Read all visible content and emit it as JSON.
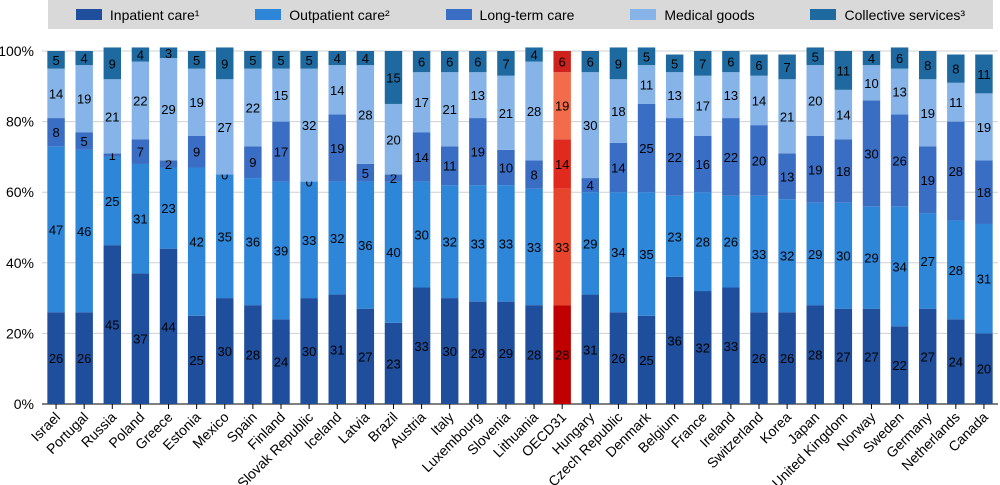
{
  "legend": [
    {
      "label": "Inpatient care¹",
      "color": "#1f4e9c"
    },
    {
      "label": "Outpatient care²",
      "color": "#2e86d9"
    },
    {
      "label": "Long-term care",
      "color": "#3a6ec4"
    },
    {
      "label": "Medical goods",
      "color": "#86b4e8"
    },
    {
      "label": "Collective services³",
      "color": "#1e6aa0"
    }
  ],
  "chart_data": {
    "type": "bar",
    "stacked": true,
    "title": "",
    "xlabel": "",
    "ylabel": "",
    "ylim": [
      0,
      100
    ],
    "y_ticks": [
      "0%",
      "20%",
      "40%",
      "60%",
      "80%",
      "100%"
    ],
    "categories": [
      "Israel",
      "Portugal",
      "Russia",
      "Poland",
      "Greece",
      "Estonia",
      "Mexico",
      "Spain",
      "Finland",
      "Slovak Republic",
      "Iceland",
      "Latvia",
      "Brazil",
      "Austria",
      "Italy",
      "Luxembourg",
      "Slovenia",
      "Lithuania",
      "OECD31",
      "Hungary",
      "Czech Republic",
      "Denmark",
      "Belgium",
      "France",
      "Ireland",
      "Switzerland",
      "Korea",
      "Japan",
      "United Kingdom",
      "Norway",
      "Sweden",
      "Germany",
      "Netherlands",
      "Canada"
    ],
    "highlight": "OECD31",
    "series": [
      {
        "name": "Inpatient care¹",
        "values": [
          26,
          26,
          45,
          37,
          44,
          25,
          30,
          28,
          24,
          30,
          31,
          27,
          23,
          33,
          30,
          29,
          29,
          28,
          28,
          31,
          26,
          25,
          36,
          32,
          33,
          26,
          26,
          28,
          27,
          27,
          22,
          27,
          24,
          20
        ],
        "color": "#1f4e9c",
        "highlight_color": "#c00000"
      },
      {
        "name": "Outpatient care²",
        "values": [
          47,
          46,
          25,
          31,
          23,
          42,
          35,
          36,
          39,
          33,
          32,
          36,
          40,
          30,
          32,
          33,
          33,
          33,
          33,
          29,
          34,
          35,
          23,
          28,
          26,
          33,
          32,
          29,
          30,
          29,
          34,
          27,
          28,
          31
        ],
        "color": "#2e86d9",
        "highlight_color": "#e8442b"
      },
      {
        "name": "Long-term care",
        "values": [
          8,
          5,
          1,
          7,
          2,
          9,
          0,
          9,
          17,
          0,
          19,
          5,
          2,
          14,
          11,
          19,
          10,
          8,
          14,
          4,
          14,
          25,
          22,
          16,
          22,
          20,
          13,
          19,
          18,
          30,
          26,
          19,
          28,
          18
        ],
        "color": "#3a6ec4",
        "highlight_color": "#e02a1e"
      },
      {
        "name": "Medical goods",
        "values": [
          14,
          19,
          21,
          22,
          29,
          19,
          27,
          22,
          15,
          32,
          14,
          28,
          20,
          17,
          21,
          13,
          21,
          28,
          19,
          30,
          18,
          11,
          13,
          17,
          13,
          14,
          21,
          20,
          14,
          10,
          13,
          19,
          11,
          19
        ],
        "color": "#86b4e8",
        "highlight_color": "#f26b4a"
      },
      {
        "name": "Collective services³",
        "values": [
          5,
          4,
          9,
          4,
          3,
          5,
          9,
          5,
          5,
          5,
          4,
          4,
          15,
          6,
          6,
          6,
          7,
          4,
          6,
          6,
          9,
          5,
          5,
          7,
          6,
          6,
          7,
          5,
          11,
          4,
          6,
          8,
          8,
          11
        ],
        "color": "#1e6aa0",
        "highlight_color": "#d0221c"
      }
    ]
  }
}
